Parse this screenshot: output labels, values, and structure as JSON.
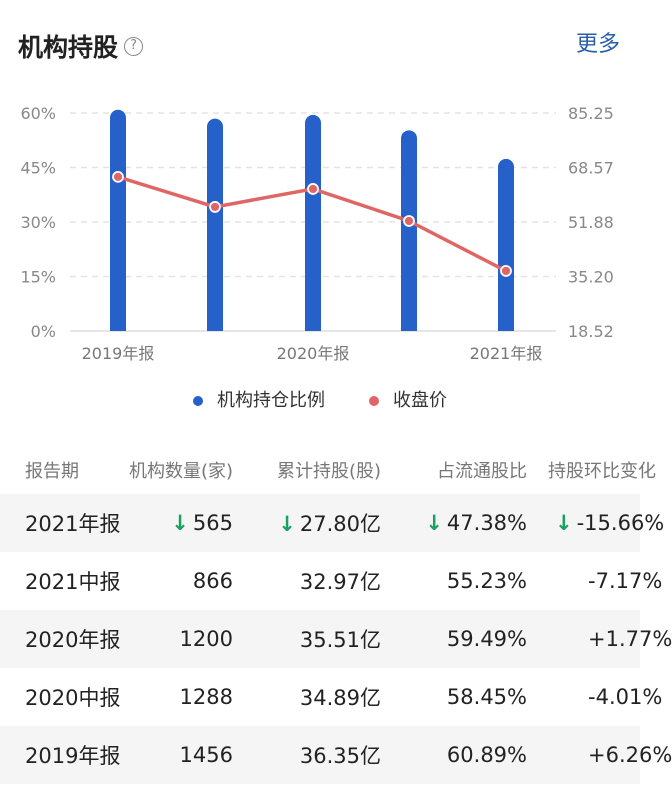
{
  "header": {
    "title": "机构持股",
    "help_icon": "?",
    "more_label": "更多"
  },
  "colors": {
    "bar": "#2660c9",
    "line": "#e06666",
    "down": "#1aa160",
    "link": "#2a5fa8"
  },
  "chart_data": {
    "type": "bar+line",
    "categories": [
      "2019年报",
      "2020中报",
      "2020年报",
      "2021中报",
      "2021年报"
    ],
    "x_tick_labels": [
      "2019年报",
      "2020年报",
      "2021年报"
    ],
    "series": [
      {
        "name": "机构持仓比例",
        "type": "bar",
        "axis": "left",
        "values": [
          60.89,
          58.45,
          59.49,
          55.23,
          47.38
        ]
      },
      {
        "name": "收盘价",
        "type": "line",
        "axis": "right",
        "values": [
          65.7,
          56.5,
          62.0,
          52.2,
          36.9
        ]
      }
    ],
    "left_axis": {
      "ticks": [
        "60%",
        "45%",
        "30%",
        "15%",
        "0%"
      ],
      "range": [
        0,
        60
      ]
    },
    "right_axis": {
      "ticks": [
        "85.25",
        "68.57",
        "51.88",
        "35.20",
        "18.52"
      ],
      "range": [
        18.52,
        85.25
      ]
    },
    "grid": true,
    "legend_position": "bottom"
  },
  "table": {
    "headers": [
      "报告期",
      "机构数量(家)",
      "累计持股(股)",
      "占流通股比",
      "持股环比变化"
    ],
    "rows": [
      {
        "period": "2021年报",
        "cells": [
          "565",
          "27.80亿",
          "47.38%",
          "-15.66%"
        ],
        "down": true
      },
      {
        "period": "2021中报",
        "cells": [
          "866",
          "32.97亿",
          "55.23%",
          "-7.17%"
        ],
        "down": false
      },
      {
        "period": "2020年报",
        "cells": [
          "1200",
          "35.51亿",
          "59.49%",
          "+1.77%"
        ],
        "down": false
      },
      {
        "period": "2020中报",
        "cells": [
          "1288",
          "34.89亿",
          "58.45%",
          "-4.01%"
        ],
        "down": false
      },
      {
        "period": "2019年报",
        "cells": [
          "1456",
          "36.35亿",
          "60.89%",
          "+6.26%"
        ],
        "down": false
      }
    ],
    "down_arrow": "↓"
  }
}
